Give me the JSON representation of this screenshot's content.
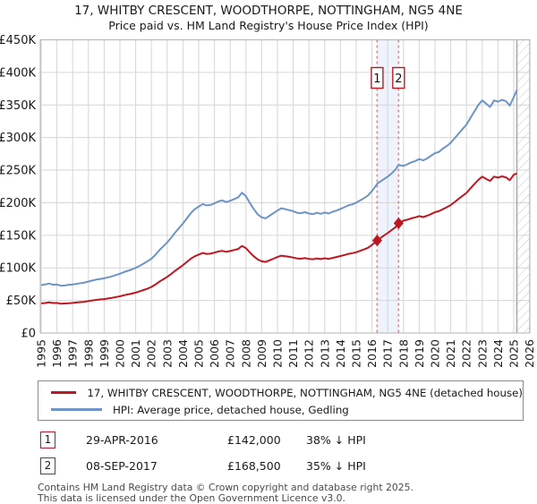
{
  "title": {
    "line1": "17, WHITBY CRESCENT, WOODTHORPE, NOTTINGHAM, NG5 4NE",
    "line2": "Price paid vs. HM Land Registry's House Price Index (HPI)"
  },
  "colors": {
    "property_line": "#bf1722",
    "hpi_line": "#6d94c9",
    "grid": "#d6d6d6",
    "frame": "#b3b3b3",
    "dashed_marker_line": "#f4807f",
    "shaded_band": "#eef3fc",
    "hatch": "#c6c6ce",
    "marker_box_border": "#bf1722",
    "footer_text": "#4a4a4a"
  },
  "chart_data": {
    "type": "line",
    "title": "17, WHITBY CRESCENT, WOODTHORPE, NOTTINGHAM, NG5 4NE",
    "subtitle": "Price paid vs. HM Land Registry's House Price Index (HPI)",
    "xlabel": "",
    "ylabel": "",
    "grid": true,
    "legend_position": "below",
    "x_ticks": [
      1995,
      1996,
      1997,
      1998,
      1999,
      2000,
      2001,
      2002,
      2003,
      2004,
      2005,
      2006,
      2007,
      2008,
      2009,
      2010,
      2011,
      2012,
      2013,
      2014,
      2015,
      2016,
      2017,
      2018,
      2019,
      2020,
      2021,
      2022,
      2023,
      2024,
      2025,
      2026
    ],
    "y_tick_labels": [
      "£0",
      "£50K",
      "£100K",
      "£150K",
      "£200K",
      "£250K",
      "£300K",
      "£350K",
      "£400K",
      "£450K"
    ],
    "y_range_thousands": [
      0,
      450
    ],
    "x_range": [
      1995,
      2026
    ],
    "shaded_band_x": [
      2016.33,
      2017.69
    ],
    "dashed_lines_x": [
      2016.33,
      2017.69
    ],
    "hatch_future_from_x": 2025.2,
    "series": [
      {
        "name": "HPI: Average price, detached house, Gedling",
        "color": "#6d94c9",
        "points": [
          [
            1995.0,
            73.5
          ],
          [
            1995.25,
            74.5
          ],
          [
            1995.5,
            76
          ],
          [
            1995.75,
            74
          ],
          [
            1996.0,
            74.5
          ],
          [
            1996.25,
            72.5
          ],
          [
            1996.5,
            73
          ],
          [
            1996.75,
            74
          ],
          [
            1997.0,
            74.5
          ],
          [
            1997.25,
            75.5
          ],
          [
            1997.5,
            76.5
          ],
          [
            1997.75,
            77.5
          ],
          [
            1998.0,
            79
          ],
          [
            1998.25,
            80.5
          ],
          [
            1998.5,
            82
          ],
          [
            1998.75,
            83
          ],
          [
            1999.0,
            84
          ],
          [
            1999.25,
            85.5
          ],
          [
            1999.5,
            87
          ],
          [
            1999.75,
            89
          ],
          [
            2000.0,
            91
          ],
          [
            2000.25,
            93.5
          ],
          [
            2000.5,
            95.5
          ],
          [
            2000.75,
            97.5
          ],
          [
            2001.0,
            100
          ],
          [
            2001.25,
            103
          ],
          [
            2001.5,
            106.5
          ],
          [
            2001.75,
            110
          ],
          [
            2002.0,
            114
          ],
          [
            2002.25,
            120
          ],
          [
            2002.5,
            127
          ],
          [
            2002.75,
            133
          ],
          [
            2003.0,
            139
          ],
          [
            2003.25,
            146
          ],
          [
            2003.5,
            154
          ],
          [
            2003.75,
            161
          ],
          [
            2004.0,
            168
          ],
          [
            2004.25,
            176
          ],
          [
            2004.5,
            184
          ],
          [
            2004.75,
            190
          ],
          [
            2005.0,
            194
          ],
          [
            2005.25,
            198
          ],
          [
            2005.5,
            196
          ],
          [
            2005.75,
            196.5
          ],
          [
            2006.0,
            199
          ],
          [
            2006.25,
            202
          ],
          [
            2006.5,
            203.5
          ],
          [
            2006.75,
            201
          ],
          [
            2007.0,
            203
          ],
          [
            2007.25,
            205.5
          ],
          [
            2007.5,
            208
          ],
          [
            2007.75,
            215.5
          ],
          [
            2008.0,
            210
          ],
          [
            2008.25,
            199.5
          ],
          [
            2008.5,
            190
          ],
          [
            2008.75,
            182
          ],
          [
            2009.0,
            177.5
          ],
          [
            2009.25,
            176
          ],
          [
            2009.5,
            180
          ],
          [
            2009.75,
            184
          ],
          [
            2010.0,
            188
          ],
          [
            2010.25,
            191.5
          ],
          [
            2010.5,
            190
          ],
          [
            2010.75,
            188.5
          ],
          [
            2011.0,
            187
          ],
          [
            2011.25,
            184.5
          ],
          [
            2011.5,
            184
          ],
          [
            2011.75,
            185.5
          ],
          [
            2012.0,
            183.5
          ],
          [
            2012.25,
            182.5
          ],
          [
            2012.5,
            184.5
          ],
          [
            2012.75,
            183
          ],
          [
            2013.0,
            185
          ],
          [
            2013.25,
            183.5
          ],
          [
            2013.5,
            186
          ],
          [
            2013.75,
            188
          ],
          [
            2014.0,
            190.5
          ],
          [
            2014.25,
            193
          ],
          [
            2014.5,
            196
          ],
          [
            2014.75,
            197.5
          ],
          [
            2015.0,
            200
          ],
          [
            2015.25,
            203.5
          ],
          [
            2015.5,
            207
          ],
          [
            2015.75,
            211
          ],
          [
            2016.0,
            218
          ],
          [
            2016.25,
            226
          ],
          [
            2016.33,
            229
          ],
          [
            2016.5,
            232
          ],
          [
            2016.75,
            236
          ],
          [
            2017.0,
            240
          ],
          [
            2017.25,
            245
          ],
          [
            2017.5,
            251
          ],
          [
            2017.69,
            258
          ],
          [
            2017.75,
            257.5
          ],
          [
            2018.0,
            256.5
          ],
          [
            2018.25,
            259
          ],
          [
            2018.5,
            262
          ],
          [
            2018.75,
            264
          ],
          [
            2019.0,
            267
          ],
          [
            2019.25,
            265
          ],
          [
            2019.5,
            268
          ],
          [
            2019.75,
            272
          ],
          [
            2020.0,
            276
          ],
          [
            2020.25,
            278
          ],
          [
            2020.5,
            283
          ],
          [
            2020.75,
            287
          ],
          [
            2021.0,
            292
          ],
          [
            2021.25,
            299
          ],
          [
            2021.5,
            306
          ],
          [
            2021.75,
            313
          ],
          [
            2022.0,
            320
          ],
          [
            2022.25,
            330
          ],
          [
            2022.5,
            340
          ],
          [
            2022.75,
            350
          ],
          [
            2023.0,
            357
          ],
          [
            2023.25,
            352
          ],
          [
            2023.5,
            347
          ],
          [
            2023.75,
            357
          ],
          [
            2024.0,
            355
          ],
          [
            2024.25,
            358
          ],
          [
            2024.5,
            356
          ],
          [
            2024.75,
            349
          ],
          [
            2025.0,
            362
          ],
          [
            2025.2,
            373
          ]
        ]
      },
      {
        "name": "17, WHITBY CRESCENT, WOODTHORPE, NOTTINGHAM, NG5 4NE (detached house)",
        "color": "#bf1722",
        "points": [
          [
            1995.0,
            45.5
          ],
          [
            1995.25,
            46
          ],
          [
            1995.5,
            47
          ],
          [
            1995.75,
            46
          ],
          [
            1996.0,
            46.2
          ],
          [
            1996.25,
            45
          ],
          [
            1996.5,
            45.3
          ],
          [
            1996.75,
            45.8
          ],
          [
            1997.0,
            46.2
          ],
          [
            1997.25,
            46.8
          ],
          [
            1997.5,
            47.4
          ],
          [
            1997.75,
            48
          ],
          [
            1998.0,
            49
          ],
          [
            1998.25,
            50
          ],
          [
            1998.5,
            50.8
          ],
          [
            1998.75,
            51.5
          ],
          [
            1999.0,
            52.1
          ],
          [
            1999.25,
            53
          ],
          [
            1999.5,
            54
          ],
          [
            1999.75,
            55.2
          ],
          [
            2000.0,
            56.4
          ],
          [
            2000.25,
            58
          ],
          [
            2000.5,
            59.2
          ],
          [
            2000.75,
            60.5
          ],
          [
            2001.0,
            62
          ],
          [
            2001.25,
            64
          ],
          [
            2001.5,
            66
          ],
          [
            2001.75,
            68.2
          ],
          [
            2002.0,
            70.7
          ],
          [
            2002.25,
            74.4
          ],
          [
            2002.5,
            78.7
          ],
          [
            2002.75,
            82.5
          ],
          [
            2003.0,
            86.2
          ],
          [
            2003.25,
            90.5
          ],
          [
            2003.5,
            95.5
          ],
          [
            2003.75,
            99.8
          ],
          [
            2004.0,
            104.2
          ],
          [
            2004.25,
            109.1
          ],
          [
            2004.5,
            114.1
          ],
          [
            2004.75,
            117.8
          ],
          [
            2005.0,
            120.3
          ],
          [
            2005.25,
            122.8
          ],
          [
            2005.5,
            121.5
          ],
          [
            2005.75,
            121.8
          ],
          [
            2006.0,
            123.4
          ],
          [
            2006.25,
            125.2
          ],
          [
            2006.5,
            126.2
          ],
          [
            2006.75,
            124.6
          ],
          [
            2007.0,
            125.9
          ],
          [
            2007.25,
            127.4
          ],
          [
            2007.5,
            129
          ],
          [
            2007.75,
            133.6
          ],
          [
            2008.0,
            130.2
          ],
          [
            2008.25,
            123.7
          ],
          [
            2008.5,
            117.8
          ],
          [
            2008.75,
            112.8
          ],
          [
            2009.0,
            110.1
          ],
          [
            2009.25,
            109.1
          ],
          [
            2009.5,
            111.6
          ],
          [
            2009.75,
            114.1
          ],
          [
            2010.0,
            116.6
          ],
          [
            2010.25,
            118.7
          ],
          [
            2010.5,
            117.8
          ],
          [
            2010.75,
            116.9
          ],
          [
            2011.0,
            115.9
          ],
          [
            2011.25,
            114.4
          ],
          [
            2011.5,
            114.1
          ],
          [
            2011.75,
            115
          ],
          [
            2012.0,
            113.8
          ],
          [
            2012.25,
            113.2
          ],
          [
            2012.5,
            114.4
          ],
          [
            2012.75,
            113.5
          ],
          [
            2013.0,
            114.7
          ],
          [
            2013.25,
            113.8
          ],
          [
            2013.5,
            115.3
          ],
          [
            2013.75,
            116.6
          ],
          [
            2014.0,
            118.1
          ],
          [
            2014.25,
            119.7
          ],
          [
            2014.5,
            121.5
          ],
          [
            2014.75,
            122.5
          ],
          [
            2015.0,
            124
          ],
          [
            2015.25,
            126.2
          ],
          [
            2015.5,
            128.3
          ],
          [
            2015.75,
            130.8
          ],
          [
            2016.0,
            135.2
          ],
          [
            2016.25,
            140.1
          ],
          [
            2016.33,
            142
          ],
          [
            2016.5,
            145
          ],
          [
            2016.75,
            149.5
          ],
          [
            2017.0,
            153.5
          ],
          [
            2017.25,
            158
          ],
          [
            2017.5,
            162.5
          ],
          [
            2017.69,
            168.5
          ],
          [
            2017.75,
            169
          ],
          [
            2018.0,
            172.5
          ],
          [
            2018.25,
            174
          ],
          [
            2018.5,
            176
          ],
          [
            2018.75,
            177.5
          ],
          [
            2019.0,
            179.5
          ],
          [
            2019.25,
            178
          ],
          [
            2019.5,
            180
          ],
          [
            2019.75,
            182.5
          ],
          [
            2020.0,
            185.5
          ],
          [
            2020.25,
            187
          ],
          [
            2020.5,
            190
          ],
          [
            2020.75,
            193
          ],
          [
            2021.0,
            196.5
          ],
          [
            2021.25,
            201
          ],
          [
            2021.5,
            206
          ],
          [
            2021.75,
            210.5
          ],
          [
            2022.0,
            215
          ],
          [
            2022.25,
            222
          ],
          [
            2022.5,
            228.5
          ],
          [
            2022.75,
            235
          ],
          [
            2023.0,
            240
          ],
          [
            2023.25,
            236.5
          ],
          [
            2023.5,
            233.5
          ],
          [
            2023.75,
            240
          ],
          [
            2024.0,
            238.5
          ],
          [
            2024.25,
            240.5
          ],
          [
            2024.5,
            239
          ],
          [
            2024.75,
            234.5
          ],
          [
            2025.0,
            243
          ],
          [
            2025.2,
            245
          ]
        ]
      }
    ],
    "markers": [
      {
        "label": "1",
        "x": 2016.33,
        "value_thousands": 142.0
      },
      {
        "label": "2",
        "x": 2017.69,
        "value_thousands": 168.5
      }
    ]
  },
  "legend": {
    "entries": [
      {
        "label": "17, WHITBY CRESCENT, WOODTHORPE, NOTTINGHAM, NG5 4NE (detached house)",
        "color": "#bf1722"
      },
      {
        "label": "HPI: Average price, detached house, Gedling",
        "color": "#6d94c9"
      }
    ]
  },
  "transactions": [
    {
      "num": "1",
      "date": "29-APR-2016",
      "price": "£142,000",
      "hpi_delta": "38% ↓ HPI"
    },
    {
      "num": "2",
      "date": "08-SEP-2017",
      "price": "£168,500",
      "hpi_delta": "35% ↓ HPI"
    }
  ],
  "footer": {
    "line1": "Contains HM Land Registry data © Crown copyright and database right 2025.",
    "line2": "This data is licensed under the Open Government Licence v3.0."
  }
}
